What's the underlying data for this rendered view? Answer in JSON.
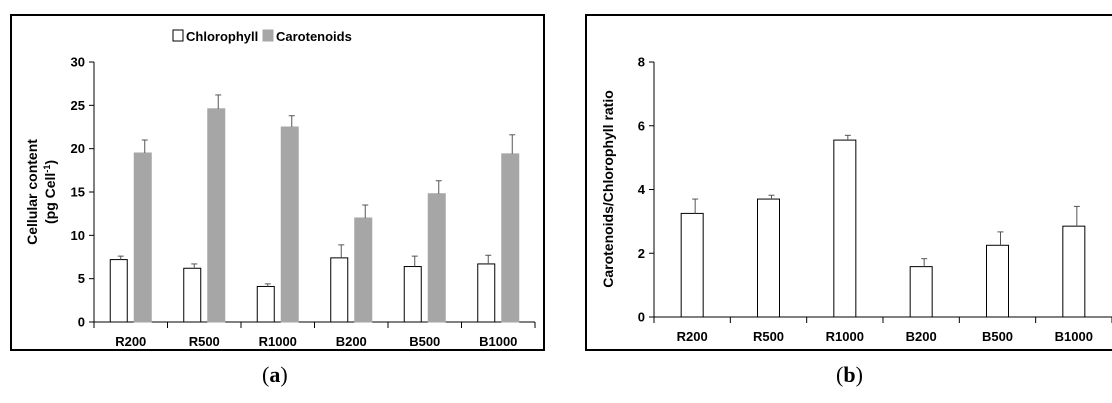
{
  "chart_data": [
    {
      "type": "bar",
      "panel": "a",
      "caption_open": "(",
      "caption_letter": "a",
      "caption_close": ")",
      "categories": [
        "R200",
        "R500",
        "R1000",
        "B200",
        "B500",
        "B1000"
      ],
      "series": [
        {
          "name": "Chlorophyll",
          "values": [
            7.2,
            6.2,
            4.1,
            7.4,
            6.4,
            6.7
          ],
          "errors": [
            0.4,
            0.5,
            0.3,
            1.5,
            1.2,
            1.0
          ],
          "color": "#ffffff"
        },
        {
          "name": "Carotenoids",
          "values": [
            19.5,
            24.6,
            22.5,
            12.0,
            14.8,
            19.4
          ],
          "errors": [
            1.5,
            1.6,
            1.3,
            1.5,
            1.5,
            2.2
          ],
          "color": "#a6a6a6"
        }
      ],
      "ylabel_line1": "Cellular content",
      "ylabel_line2_pre": "(pg Cell",
      "ylabel_line2_sup": "-1",
      "ylabel_line2_post": ")",
      "ylim": [
        0,
        30
      ],
      "yticks": [
        0,
        5,
        10,
        15,
        20,
        25,
        30
      ],
      "legend_placement": "top-center",
      "grid": false
    },
    {
      "type": "bar",
      "panel": "b",
      "caption_open": "(",
      "caption_letter": "b",
      "caption_close": ")",
      "categories": [
        "R200",
        "R500",
        "R1000",
        "B200",
        "B500",
        "B1000"
      ],
      "series": [
        {
          "values": [
            3.25,
            3.7,
            5.55,
            1.58,
            2.25,
            2.85
          ],
          "errors": [
            0.45,
            0.12,
            0.15,
            0.25,
            0.42,
            0.62
          ],
          "color": "#ffffff"
        }
      ],
      "ylabel": "Carotenoids/Chlorophyll ratio",
      "ylim": [
        0,
        8
      ],
      "yticks": [
        0,
        2,
        4,
        6,
        8
      ],
      "grid": false
    }
  ]
}
